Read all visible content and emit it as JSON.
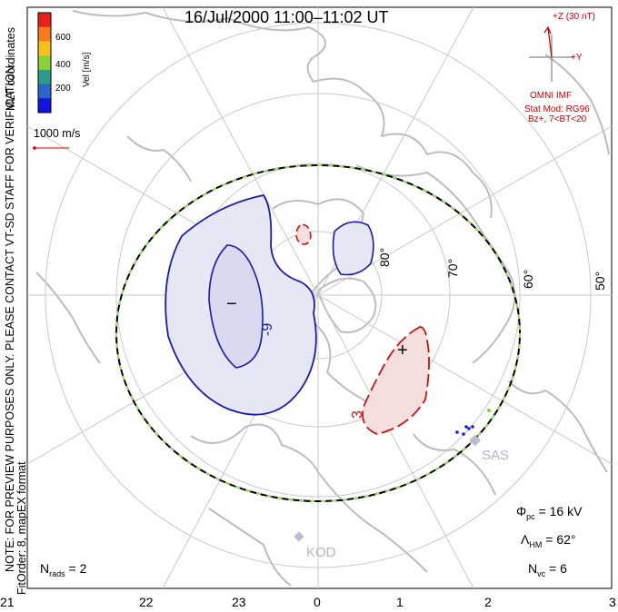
{
  "title": "16/Jul/2000 11:00–11:02 UT",
  "side_note": {
    "line1": "NOTE: FOR PREVIEW PURPOSES ONLY. PLEASE CONTACT VT-SD STAFF FOR VERIFICATION.",
    "line2": "FitOrder: 8, mapEX format"
  },
  "coords_label": "MLT coordinates",
  "colorbar": {
    "label": "Vel [m/s]",
    "ticks": [
      "600",
      "400",
      "200"
    ],
    "colors": [
      "#e8211b",
      "#f57b1d",
      "#f2c21a",
      "#8bd13a",
      "#2e9b8a",
      "#2d64c8",
      "#1414e0"
    ]
  },
  "velocity_scale": "1000 m/s",
  "imf": {
    "z_label": "+Z (30 nT)",
    "y_label": "+Y",
    "source": "OMNI IMF",
    "model_line1": "Stat Mod: RG96",
    "model_line2": "Bz+, 7<BT<20",
    "color": "#cc0000"
  },
  "lat_labels": [
    "80°",
    "70°",
    "60°",
    "50°"
  ],
  "mlt_ticks": [
    "21",
    "22",
    "23",
    "0",
    "1",
    "2",
    "3"
  ],
  "stations": [
    "SAS",
    "KOD"
  ],
  "cells": {
    "negative": {
      "symbol": "−",
      "value": "-9",
      "color": "#1a1aa8",
      "fill": "#e6e7f4"
    },
    "positive": {
      "symbol": "+",
      "value": "3",
      "color": "#c81414",
      "fill": "#f4dede"
    }
  },
  "stats": {
    "phi_pc": {
      "symbol": "Φ",
      "sub": "pc",
      "value": "= 16 kV"
    },
    "lambda_hm": {
      "symbol": "Λ",
      "sub": "HM",
      "value": "= 62°"
    },
    "n_vc": {
      "symbol": "N",
      "sub": "vc",
      "value": "= 6"
    },
    "n_rads": {
      "symbol": "N",
      "sub": "rads",
      "value": "= 2"
    }
  }
}
